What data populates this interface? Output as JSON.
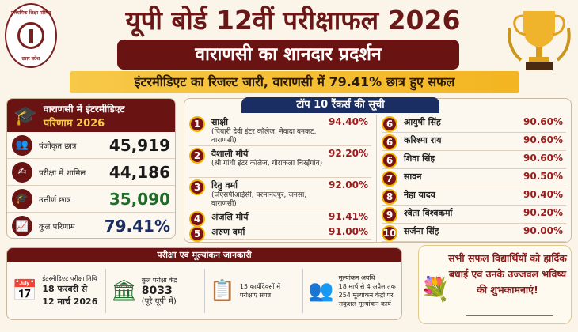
{
  "logo": {
    "top_text": "माध्यमिक शिक्षा परिषद",
    "bottom_text": "उत्तर प्रदेश"
  },
  "header": {
    "title": "यूपी बोर्ड 12वीं परीक्षाफल 2026",
    "banner": "वाराणसी का शानदार प्रदर्शन",
    "strip": "इंटरमीडिएट का रिजल्ट जारी, वाराणसी में 79.41% छात्र हुए सफल"
  },
  "stats": {
    "title_line1": "वाराणसी में इंटरमीडिएट",
    "title_line2": "परिणाम 2026",
    "rows": [
      {
        "label": "पंजीकृत छात्र",
        "value": "45,919",
        "color": "#1a1a1a"
      },
      {
        "label": "परीक्षा में शामिल",
        "value": "44,186",
        "color": "#1a1a1a"
      },
      {
        "label": "उत्तीर्ण छात्र",
        "value": "35,090",
        "color": "#1e6b2a"
      },
      {
        "label": "कुल परिणाम",
        "value": "79.41%",
        "color": "#1b2e63"
      }
    ]
  },
  "rankers": {
    "title": "टॉप 10 रैंकर्स की सूची",
    "left": [
      {
        "rank": "1",
        "name": "साक्षी",
        "school": "(पियारी देवी इंटर कॉलेज, नेवादा बनकट, वाराणसी)",
        "percent": "94.40%"
      },
      {
        "rank": "2",
        "name": "वैशाली मौर्य",
        "school": "(श्री गांधी इंटर कॉलेज, गौराकला चिरईगांव)",
        "percent": "92.20%"
      },
      {
        "rank": "3",
        "name": "रितु वर्मा",
        "school": "(जेएसपीआईसी, परमानंदपुर, जनसा, वाराणसी)",
        "percent": "92.00%"
      },
      {
        "rank": "4",
        "name": "अंजलि मौर्य",
        "percent": "91.41%"
      },
      {
        "rank": "5",
        "name": "अरुण वर्मा",
        "percent": "91.00%"
      }
    ],
    "right": [
      {
        "rank": "6",
        "name": "आयुषी सिंह",
        "percent": "90.60%"
      },
      {
        "rank": "6",
        "name": "करिश्मा राय",
        "percent": "90.60%"
      },
      {
        "rank": "6",
        "name": "शिवा सिंह",
        "percent": "90.60%"
      },
      {
        "rank": "7",
        "name": "सावन",
        "percent": "90.50%"
      },
      {
        "rank": "8",
        "name": "नेहा यादव",
        "percent": "90.40%"
      },
      {
        "rank": "9",
        "name": "श्वेता विश्वकर्मा",
        "percent": "90.20%"
      },
      {
        "rank": "10",
        "name": "सर्जना सिंह",
        "percent": "90.00%"
      }
    ]
  },
  "exam_info": {
    "title": "परीक्षा एवं मूल्यांकन जानकारी",
    "date_label": "इंटरमीडिएट परीक्षा तिथि",
    "date_line1": "18 फरवरी से",
    "date_line2": "12 मार्च 2026",
    "centers_label": "कुल परीक्षा केंद्र",
    "centers_value": "8033",
    "centers_note": "(पूरे यूपी में)",
    "days_text": "15 कार्यदिवसों में परीक्षाएं संपन्न",
    "eval_line1": "मूल्यांकन अवधि",
    "eval_line2": "18 मार्च से 4 अप्रैल तक",
    "eval_line3": "254 मूल्यांकन केंद्रों पर सकुशल मूल्यांकन कार्य"
  },
  "greeting": {
    "text": "सभी सफल विद्यार्थियों को हार्दिक बधाई एवं उनके उज्जवल भविष्य की शुभकामनाएं!"
  }
}
